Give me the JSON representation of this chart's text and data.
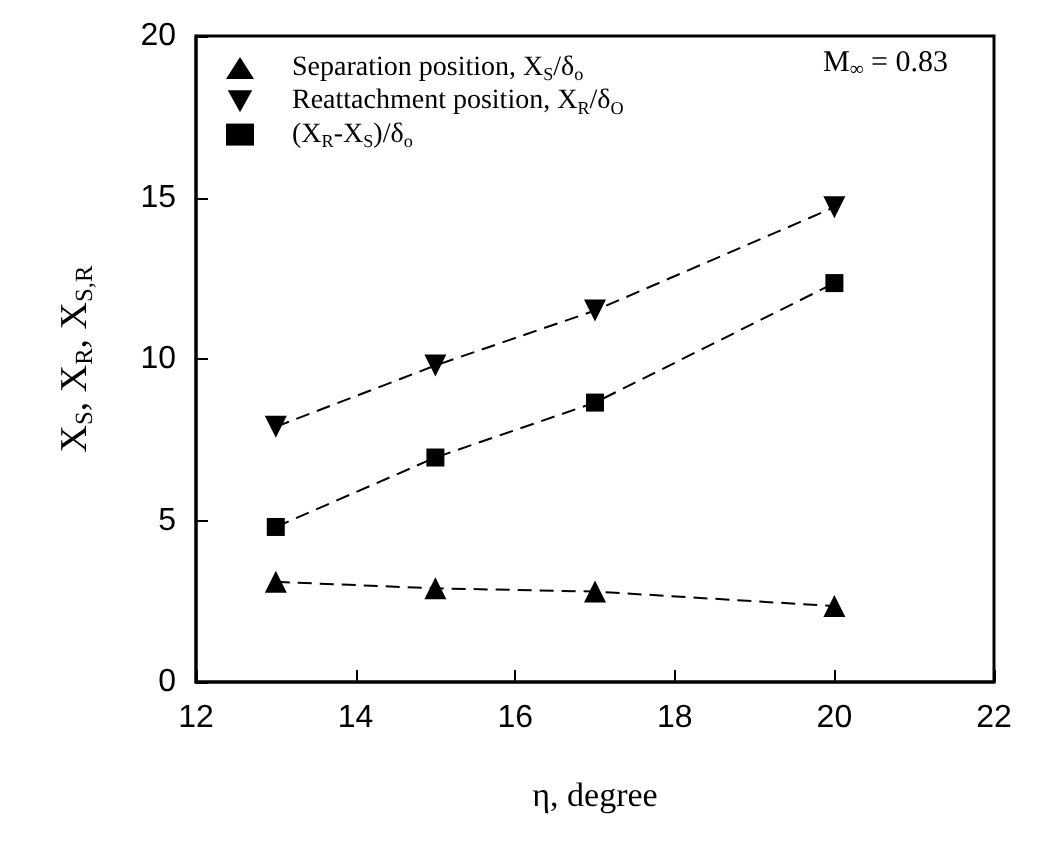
{
  "chart_data": {
    "type": "line",
    "xlabel": "η, degree",
    "ylabel": "X$_{S}$, X$_{R}$, X$_{S,R}$",
    "annotations": [
      "M$_{∞}$ = 0.83"
    ],
    "x": [
      13,
      15,
      17,
      20
    ],
    "xlim": [
      12,
      22
    ],
    "xticks": [
      12,
      14,
      16,
      18,
      20,
      22
    ],
    "ylim": [
      0,
      20
    ],
    "yticks": [
      0,
      5,
      10,
      15,
      20
    ],
    "grid": false,
    "legend": "top left",
    "line_style": "dashed",
    "series": [
      {
        "name": "Separation position, X$_{S}$/δ$_{o}$",
        "color": "#000000",
        "marker": "triangle",
        "values": [
          3.1,
          2.9,
          2.8,
          2.35
        ]
      },
      {
        "name": "Reattachment position, X$_{R}$/δ$_{O}$",
        "color": "#000000",
        "marker": "triangle-down",
        "values": [
          7.9,
          9.8,
          11.5,
          14.7
        ]
      },
      {
        "name": "(X$_{R}$-X$_{S}$)/δ$_{o}$",
        "color": "#000000",
        "marker": "square",
        "values": [
          4.8,
          6.95,
          8.65,
          12.35
        ]
      }
    ]
  }
}
